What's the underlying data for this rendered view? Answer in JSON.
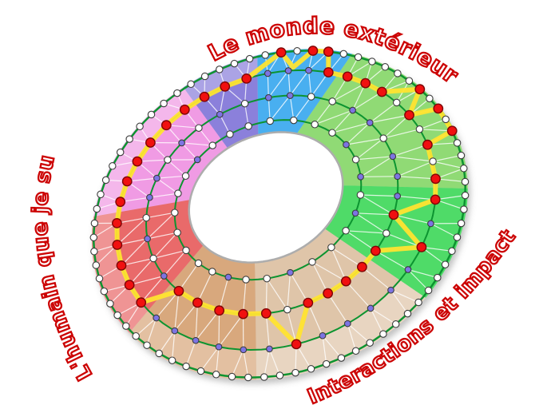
{
  "labels": {
    "top": "Le monde extérieur",
    "left": "L'humain que je suis",
    "bottom_right": "Interactions et impact"
  },
  "palette": {
    "background": "#ffffff",
    "ring_line": "#0c9430",
    "mesh_line": "#ffffff",
    "profile_line": "#ffe430",
    "node_white": "#ffffff",
    "node_violet": "#7d74e3",
    "node_red": "#f01010",
    "node_red_stroke": "#7f0606",
    "node_stroke": "#3c3c3c",
    "hole_fill": "#ffffff",
    "hole_stroke": "#adadad",
    "label_red": "#cc0303",
    "outer_light_overlay": "rgba(255,255,255,0.28)"
  },
  "wheel": {
    "ring_levels": {
      "r1": 1.0,
      "r2": 0.76,
      "r3": 0.45,
      "r4": 0.15
    },
    "sectors": [
      {
        "id": "pink",
        "color": "#f09be4",
        "light_outer": true,
        "span": [
          151,
          100
        ],
        "rings": {
          "r1": "wwwwwwwwww",
          "r2": "rrrrrr",
          "r3": "vvwvw",
          "r4": "wwvw"
        }
      },
      {
        "id": "purple",
        "color": "#8b80db",
        "light_outer": true,
        "span": [
          100,
          76
        ],
        "rings": {
          "r1": "wwwww",
          "r2": "rrr",
          "r3": "vw",
          "r4": "ww"
        }
      },
      {
        "id": "blue",
        "color": "#49aff0",
        "light_outer": false,
        "span": [
          76,
          46.5
        ],
        "rings": {
          "r1": "wrwrrw",
          "r2": "vvvr",
          "r3": "vvw",
          "r4": "ww"
        }
      },
      {
        "id": "lightgreen",
        "color": "#90da74",
        "light_outer": false,
        "span": [
          46.5,
          -20.7
        ],
        "rings": {
          "r1": "wwwwwrwrwrwwww",
          "r2": "rrrwrwrwr",
          "r3": "wvvwvv",
          "r4": "wwvwv"
        }
      },
      {
        "id": "green",
        "color": "#4fdb67",
        "light_outer": false,
        "span": [
          -20.7,
          -60
        ],
        "rings": {
          "r1": "wwwwwwww",
          "r2": "rvrv",
          "r3": "vrwr",
          "r4": "wvw"
        }
      },
      {
        "id": "lighttan",
        "color": "#dfc5a9",
        "light_outer": true,
        "span": [
          -60,
          -118
        ],
        "rings": {
          "r1": "wwwwwwwwwwww",
          "r2": "vvvvrv",
          "r3": "rrrrwr",
          "r4": "wwvw"
        }
      },
      {
        "id": "darktan",
        "color": "#d8a87d",
        "light_outer": true,
        "span": [
          -118,
          -164
        ],
        "rings": {
          "r1": "wwwwwwwww",
          "r2": "vvvvv",
          "r3": "rrrr",
          "r4": "wvww"
        }
      },
      {
        "id": "red",
        "color": "#e96b6b",
        "light_outer": true,
        "span": [
          -164,
          -209
        ],
        "rings": {
          "r1": "wwwwwwwww",
          "r2": "rrrrr",
          "r3": "vwvw",
          "r4": "www"
        }
      }
    ],
    "profile_dips": [
      {
        "sector": 2,
        "u": 63.5,
        "t": 0.8
      }
    ]
  }
}
